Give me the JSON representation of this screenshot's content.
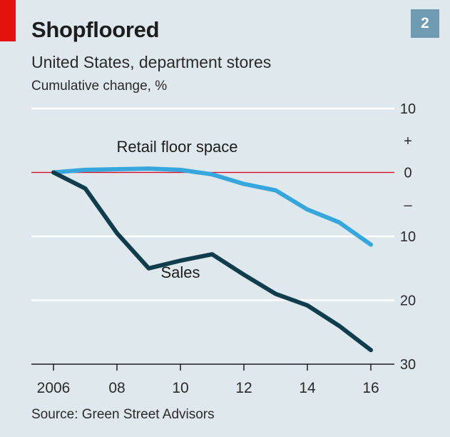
{
  "header": {
    "title": "Shopfloored",
    "chart_number": "2",
    "subtitle": "United States, department stores",
    "unit_label": "Cumulative change, %"
  },
  "footer": {
    "source": "Source: Green Street Advisors"
  },
  "colors": {
    "background": "#dfe8ed",
    "grid": "#ffffff",
    "zero_line": "#c8102e",
    "retail_floor_space": "#36a7dd",
    "sales": "#0f3d4c",
    "tag": "#e3120b",
    "number_box": "#6f9bb2"
  },
  "chart_data": {
    "type": "line",
    "title": "Shopfloored",
    "subtitle": "United States, department stores",
    "ylabel": "Cumulative change, %",
    "xlabel": "",
    "ylim": [
      -30,
      10
    ],
    "xlim": [
      2006,
      2016
    ],
    "grid": true,
    "y_ticks": [
      {
        "value": 10,
        "label": "10"
      },
      {
        "value": 5,
        "label": "+"
      },
      {
        "value": 0,
        "label": "0"
      },
      {
        "value": -5,
        "label": "–"
      },
      {
        "value": -10,
        "label": "10"
      },
      {
        "value": -20,
        "label": "20"
      },
      {
        "value": -30,
        "label": "30"
      }
    ],
    "gridlines": [
      10,
      0,
      -10,
      -20
    ],
    "x_ticks": [
      {
        "value": 2006,
        "label": "2006"
      },
      {
        "value": 2008,
        "label": "08"
      },
      {
        "value": 2010,
        "label": "10"
      },
      {
        "value": 2012,
        "label": "12"
      },
      {
        "value": 2014,
        "label": "14"
      },
      {
        "value": 2016,
        "label": "16"
      }
    ],
    "x": [
      2006,
      2007,
      2008,
      2009,
      2010,
      2011,
      2012,
      2013,
      2014,
      2015,
      2016
    ],
    "series": [
      {
        "name": "Retail floor space",
        "key": "retail_floor_space",
        "values": [
          0,
          0.4,
          0.5,
          0.6,
          0.4,
          -0.3,
          -1.8,
          -2.8,
          -5.8,
          -7.8,
          -11.3
        ],
        "label_at": [
          2009.9,
          3.2
        ]
      },
      {
        "name": "Sales",
        "key": "sales",
        "values": [
          0,
          -2.5,
          -9.5,
          -15,
          -13.8,
          -12.8,
          -16,
          -19,
          -20.8,
          -24,
          -27.8
        ],
        "label_at": [
          2010,
          -16.5
        ]
      }
    ]
  }
}
